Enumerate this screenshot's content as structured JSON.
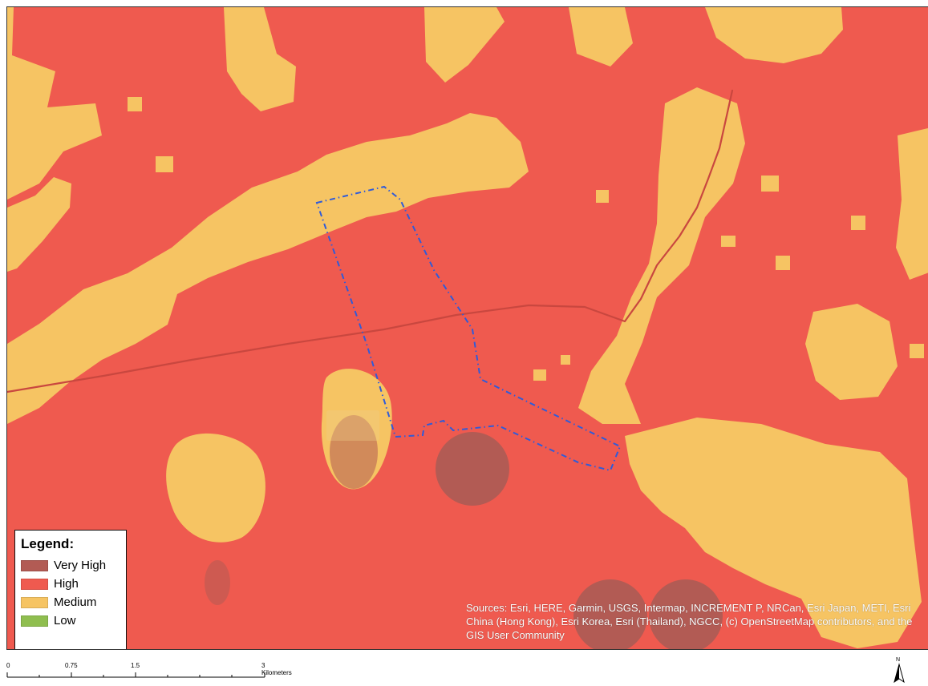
{
  "map": {
    "colors": {
      "very_high": "#b25b54",
      "high": "#ef5a4f",
      "medium": "#f6c463",
      "low": "#8fbe4f",
      "boundary": "#2f5bd9",
      "railway": "#c9473f",
      "label_halo": "#efcf8a"
    },
    "attribution": "Sources: Esri, HERE, Garmin, USGS, Intermap, INCREMENT P, NRCan, Esri Japan, METI, Esri China (Hong Kong), Esri Korea, Esri (Thailand), NGCC, (c) OpenStreetMap contributors, and the GIS User Community"
  },
  "legend": {
    "title": "Legend:",
    "items": [
      {
        "label": "Very High",
        "color": "#b25b54"
      },
      {
        "label": "High",
        "color": "#ef5a4f"
      },
      {
        "label": "Medium",
        "color": "#f6c463"
      },
      {
        "label": "Low",
        "color": "#8fbe4f"
      }
    ]
  },
  "scalebar": {
    "labels": [
      "0",
      "0.75",
      "1.5",
      "3 Kilometers"
    ]
  },
  "north_arrow": {
    "label": "N",
    "icon": "north-arrow-icon"
  }
}
